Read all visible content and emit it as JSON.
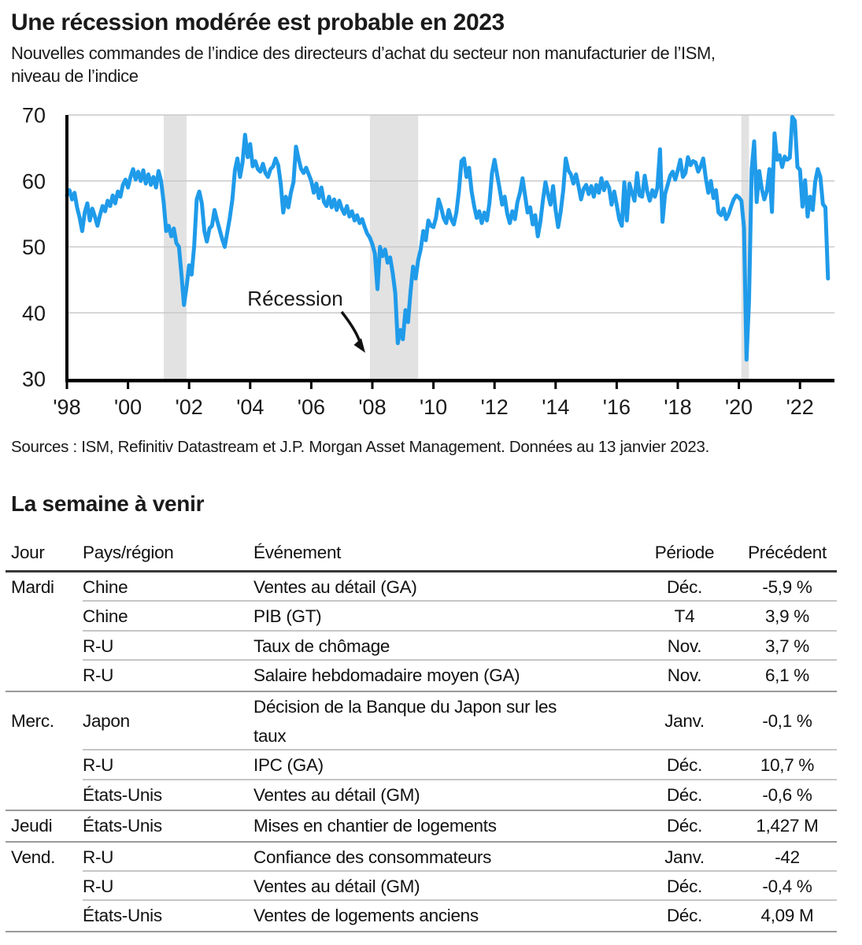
{
  "source_note": "Sources : ISM, Refinitiv Datastream et J.P. Morgan Asset Management. Données au 13 janvier 2023.",
  "week_ahead": {
    "title": "La semaine à venir",
    "columns": [
      "Jour",
      "Pays/région",
      "Événement",
      "Période",
      "Précédent"
    ],
    "rows": [
      {
        "day": "Mardi",
        "region": "Chine",
        "event": "Ventes au détail (GA)",
        "period": "Déc.",
        "previous": "-5,9 %",
        "sep": "partial"
      },
      {
        "day": "",
        "region": "Chine",
        "event": "PIB (GT)",
        "period": "T4",
        "previous": "3,9 %",
        "sep": "partial"
      },
      {
        "day": "",
        "region": "R-U",
        "event": "Taux de chômage",
        "period": "Nov.",
        "previous": "3,7 %",
        "sep": "partial"
      },
      {
        "day": "",
        "region": "R-U",
        "event": "Salaire hebdomadaire moyen (GA)",
        "period": "Nov.",
        "previous": "6,1 %",
        "sep": "full"
      },
      {
        "day": "Merc.",
        "region": "Japon",
        "event": [
          "Décision de la Banque du Japon sur les",
          "taux"
        ],
        "period": "Janv.",
        "previous": "-0,1 %",
        "sep": "partial"
      },
      {
        "day": "",
        "region": "R-U",
        "event": "IPC (GA)",
        "period": "Déc.",
        "previous": "10,7 %",
        "sep": "partial"
      },
      {
        "day": "",
        "region": "États-Unis",
        "event": "Ventes au détail (GM)",
        "period": "Déc.",
        "previous": "-0,6 %",
        "sep": "full"
      },
      {
        "day": "Jeudi",
        "region": "États-Unis",
        "event": "Mises en chantier de logements",
        "period": "Déc.",
        "previous": "1,427 M",
        "sep": "full"
      },
      {
        "day": "Vend.",
        "region": "R-U",
        "event": "Confiance des consommateurs",
        "period": "Janv.",
        "previous": "-42",
        "sep": "partial"
      },
      {
        "day": "",
        "region": "R-U",
        "event": "Ventes au détail (GM)",
        "period": "Déc.",
        "previous": "-0,4 %",
        "sep": "partial"
      },
      {
        "day": "",
        "region": "États-Unis",
        "event": "Ventes de logements anciens",
        "period": "Déc.",
        "previous": "4,09 M",
        "sep": "full"
      }
    ]
  },
  "chart_data": {
    "type": "line",
    "title": "Une récession modérée est probable en 2023",
    "subtitle_lines": [
      "Nouvelles commandes de l’indice des directeurs d’achat du secteur non manufacturier de l’ISM,",
      "niveau de l’indice"
    ],
    "series_name": "Nouvelles commandes ISM non manufacturier",
    "frequency": "monthly",
    "x_start_year": 1998,
    "x_tick_years": [
      1998,
      2000,
      2002,
      2004,
      2006,
      2008,
      2010,
      2012,
      2014,
      2016,
      2018,
      2020,
      2022
    ],
    "x_tick_labels": [
      "'98",
      "'00",
      "'02",
      "'04",
      "'06",
      "'08",
      "'10",
      "'12",
      "'14",
      "'16",
      "'18",
      "'20",
      "'22"
    ],
    "ylim": [
      30,
      70
    ],
    "y_ticks": [
      30,
      40,
      50,
      60,
      70
    ],
    "grid": true,
    "line_color": "#1F9BEA",
    "recession_band_color": "#E2E2E2",
    "recession_bands_years": [
      [
        2001.17,
        2001.92
      ],
      [
        2007.92,
        2009.5
      ],
      [
        2020.08,
        2020.33
      ]
    ],
    "annotation": {
      "text": "Récession",
      "points_to": "bande de récession 2008"
    },
    "values": [
      57.8,
      58.6,
      57.2,
      58.2,
      56.0,
      54.4,
      52.4,
      55.2,
      56.6,
      54.0,
      55.8,
      54.6,
      53.2,
      54.8,
      56.2,
      55.4,
      57.0,
      56.2,
      57.8,
      56.6,
      58.4,
      57.6,
      59.4,
      60.2,
      59.0,
      60.6,
      61.8,
      60.2,
      61.4,
      60.0,
      61.6,
      59.6,
      61.0,
      59.4,
      60.6,
      59.0,
      61.5,
      60.0,
      56.8,
      52.4,
      53.2,
      51.6,
      52.8,
      50.6,
      50.0,
      45.8,
      41.2,
      44.0,
      47.2,
      45.8,
      50.2,
      57.2,
      58.4,
      56.6,
      52.4,
      50.8,
      52.8,
      53.2,
      55.6,
      54.0,
      52.6,
      51.2,
      50.0,
      52.2,
      54.4,
      57.2,
      61.6,
      63.4,
      60.6,
      62.8,
      67.0,
      63.6,
      65.6,
      62.2,
      63.0,
      61.8,
      61.4,
      62.6,
      61.2,
      60.6,
      61.8,
      62.2,
      63.4,
      62.4,
      59.6,
      55.2,
      57.6,
      56.0,
      58.2,
      59.8,
      65.2,
      63.4,
      61.8,
      61.2,
      62.0,
      61.0,
      60.0,
      58.2,
      59.6,
      57.4,
      59.0,
      56.8,
      56.2,
      57.6,
      56.0,
      57.2,
      55.6,
      57.0,
      55.8,
      55.0,
      56.2,
      54.6,
      55.4,
      54.0,
      54.8,
      53.6,
      54.2,
      53.0,
      52.0,
      51.4,
      50.4,
      49.0,
      43.6,
      50.0,
      48.6,
      49.6,
      47.6,
      48.4,
      46.0,
      43.0,
      35.4,
      37.4,
      36.0,
      40.4,
      38.6,
      43.2,
      47.0,
      45.2,
      48.0,
      49.6,
      52.4,
      51.0,
      54.0,
      53.2,
      53.0,
      54.4,
      57.2,
      56.0,
      54.4,
      53.6,
      55.6,
      54.2,
      53.4,
      55.2,
      58.4,
      63.0,
      63.4,
      60.6,
      62.0,
      58.4,
      56.2,
      54.4,
      55.4,
      53.6,
      55.2,
      54.0,
      56.6,
      61.2,
      63.2,
      61.0,
      58.8,
      56.4,
      57.6,
      55.0,
      53.6,
      55.4,
      54.2,
      56.8,
      58.2,
      60.4,
      57.8,
      55.2,
      56.0,
      53.4,
      54.8,
      51.6,
      53.8,
      57.0,
      59.8,
      58.0,
      56.4,
      59.2,
      55.6,
      53.0,
      55.4,
      58.6,
      63.4,
      61.6,
      61.0,
      59.6,
      61.0,
      59.2,
      57.2,
      58.8,
      59.4,
      58.0,
      59.2,
      57.6,
      59.4,
      58.2,
      60.4,
      58.6,
      59.8,
      59.0,
      56.4,
      58.4,
      56.4,
      54.2,
      53.2,
      59.8,
      54.0,
      59.6,
      58.2,
      57.0,
      61.2,
      57.8,
      57.6,
      60.8,
      58.4,
      57.0,
      58.6,
      57.6,
      59.0,
      64.8,
      53.8,
      58.0,
      59.4,
      60.8,
      61.4,
      60.2,
      61.6,
      63.2,
      60.6,
      61.2,
      63.6,
      62.4,
      63.0,
      62.8,
      61.4,
      62.2,
      63.4,
      60.4,
      58.2,
      60.0,
      57.4,
      58.6,
      55.2,
      54.8,
      55.8,
      54.2,
      55.0,
      56.2,
      57.2,
      57.8,
      57.5,
      57.0,
      52.9,
      32.9,
      41.9,
      61.6,
      66.0,
      56.8,
      61.5,
      58.8,
      57.2,
      58.5,
      61.8,
      55.3,
      67.2,
      63.2,
      63.9,
      62.1,
      63.7,
      63.2,
      63.5,
      69.7,
      69.1,
      62.1,
      61.7,
      56.1,
      60.1,
      54.6,
      57.6,
      55.6,
      59.9,
      61.8,
      60.6,
      56.5,
      56.0,
      45.2
    ]
  }
}
